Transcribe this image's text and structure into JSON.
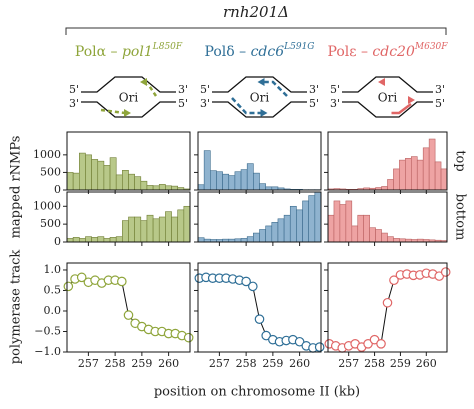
{
  "figure": {
    "title": "rnh201Δ",
    "ylabel_hist": "mapped rNMPs",
    "ylabel_track": "polymerase track",
    "xlabel": "position on chromosome II (kb)",
    "row_labels": [
      "top",
      "bottom"
    ],
    "diagram": {
      "left": [
        "5'",
        "3'"
      ],
      "right": [
        "3'",
        "5'"
      ],
      "center": "Ori"
    },
    "columns": [
      {
        "prefix": "Polα – ",
        "gene": "pol1",
        "allele": "L850F",
        "color": "#8fa53b"
      },
      {
        "prefix": "Polδ – ",
        "gene": "cdc6",
        "allele": "L591G",
        "color": "#2f6f97"
      },
      {
        "prefix": "Polε – ",
        "gene": "cdc20",
        "allele": "M630F",
        "color": "#e06666"
      }
    ]
  },
  "chart_data": [
    {
      "type": "histogram",
      "color": "#b8c889",
      "edge": "#6f7d33",
      "xlim": [
        256.2,
        260.8
      ],
      "ylim": [
        0,
        1650
      ],
      "yticks": [
        0,
        500,
        1000
      ],
      "xticks": [
        257,
        258,
        259,
        260
      ],
      "bins": [
        256.2,
        256.43,
        256.66,
        256.89,
        257.12,
        257.35,
        257.58,
        257.81,
        258.04,
        258.27,
        258.5,
        258.73,
        258.96,
        259.19,
        259.42,
        259.65,
        259.88,
        260.11,
        260.34,
        260.57,
        260.8
      ],
      "values": [
        500,
        480,
        1050,
        1000,
        870,
        820,
        700,
        920,
        430,
        560,
        450,
        380,
        250,
        130,
        120,
        160,
        120,
        110,
        70,
        30
      ]
    },
    {
      "type": "histogram",
      "color": "#b8c889",
      "edge": "#6f7d33",
      "xlim": [
        256.2,
        260.8
      ],
      "ylim": [
        0,
        1400
      ],
      "yticks": [
        0,
        500,
        1000
      ],
      "xticks": [
        257,
        258,
        259,
        260
      ],
      "bins": [
        256.2,
        256.43,
        256.66,
        256.89,
        257.12,
        257.35,
        257.58,
        257.81,
        258.04,
        258.27,
        258.5,
        258.73,
        258.96,
        259.19,
        259.42,
        259.65,
        259.88,
        260.11,
        260.34,
        260.57,
        260.8
      ],
      "values": [
        100,
        130,
        100,
        150,
        130,
        150,
        100,
        130,
        150,
        600,
        700,
        700,
        600,
        750,
        650,
        700,
        850,
        700,
        900,
        1000
      ]
    },
    {
      "type": "line",
      "color": "#8fa53b",
      "xlim": [
        256.2,
        260.8
      ],
      "ylim": [
        -1.0,
        1.17
      ],
      "yticks": [
        {
          "value": -1.0,
          "label": "−1.0"
        },
        {
          "value": -0.5,
          "label": "−0.5"
        },
        {
          "value": 0.0,
          "label": "0.0"
        },
        0.5,
        {
          "value": 1.0,
          "label": "1.0"
        }
      ],
      "xticks": [
        257,
        258,
        259,
        260
      ],
      "x": [
        256.25,
        256.5,
        256.75,
        257.0,
        257.25,
        257.5,
        257.75,
        258.0,
        258.25,
        258.5,
        258.75,
        259.0,
        259.25,
        259.5,
        259.75,
        260.0,
        260.25,
        260.5,
        260.75
      ],
      "values": [
        0.6,
        0.78,
        0.82,
        0.7,
        0.75,
        0.68,
        0.75,
        0.75,
        0.72,
        -0.1,
        -0.3,
        -0.38,
        -0.45,
        -0.5,
        -0.5,
        -0.55,
        -0.55,
        -0.6,
        -0.65
      ]
    },
    {
      "type": "histogram",
      "color": "#8fb3cf",
      "edge": "#3a6a8c",
      "xlim": [
        256.2,
        260.8
      ],
      "ylim": [
        0,
        1650
      ],
      "yticks": [
        0,
        500,
        1000
      ],
      "xticks": [
        257,
        258,
        259,
        260
      ],
      "bins": [
        256.2,
        256.43,
        256.66,
        256.89,
        257.12,
        257.35,
        257.58,
        257.81,
        258.04,
        258.27,
        258.5,
        258.73,
        258.96,
        259.19,
        259.42,
        259.65,
        259.88,
        260.11,
        260.34,
        260.57,
        260.8
      ],
      "values": [
        150,
        1120,
        550,
        520,
        450,
        410,
        520,
        580,
        750,
        480,
        180,
        90,
        90,
        60,
        30,
        20,
        20,
        10,
        10,
        10
      ]
    },
    {
      "type": "histogram",
      "color": "#8fb3cf",
      "edge": "#3a6a8c",
      "xlim": [
        256.2,
        260.8
      ],
      "ylim": [
        0,
        1400
      ],
      "yticks": [
        0,
        500,
        1000
      ],
      "xticks": [
        257,
        258,
        259,
        260
      ],
      "bins": [
        256.2,
        256.43,
        256.66,
        256.89,
        257.12,
        257.35,
        257.58,
        257.81,
        258.04,
        258.27,
        258.5,
        258.73,
        258.96,
        259.19,
        259.42,
        259.65,
        259.88,
        260.11,
        260.34,
        260.57,
        260.8
      ],
      "values": [
        120,
        80,
        70,
        70,
        80,
        80,
        90,
        100,
        150,
        250,
        350,
        450,
        550,
        650,
        750,
        1000,
        900,
        1150,
        1300,
        1400
      ]
    },
    {
      "type": "line",
      "color": "#2f6f97",
      "xlim": [
        256.2,
        260.8
      ],
      "ylim": [
        -1.0,
        1.17
      ],
      "yticks": [
        -1,
        -0.5,
        0,
        0.5,
        1
      ],
      "xticks": [
        257,
        258,
        259,
        260
      ],
      "x": [
        256.25,
        256.5,
        256.75,
        257.0,
        257.25,
        257.5,
        257.75,
        258.0,
        258.25,
        258.5,
        258.75,
        259.0,
        259.25,
        259.5,
        259.75,
        260.0,
        260.25,
        260.5,
        260.75
      ],
      "values": [
        0.8,
        0.82,
        0.8,
        0.8,
        0.8,
        0.78,
        0.75,
        0.72,
        0.6,
        -0.2,
        -0.6,
        -0.7,
        -0.75,
        -0.72,
        -0.7,
        -0.75,
        -0.85,
        -0.9,
        -0.88
      ]
    },
    {
      "type": "histogram",
      "color": "#eea3a3",
      "edge": "#b96060",
      "xlim": [
        256.2,
        260.8
      ],
      "ylim": [
        0,
        1650
      ],
      "yticks": [
        0,
        500,
        1000
      ],
      "xticks": [
        257,
        258,
        259,
        260
      ],
      "bins": [
        256.2,
        256.43,
        256.66,
        256.89,
        257.12,
        257.35,
        257.58,
        257.81,
        258.04,
        258.27,
        258.5,
        258.73,
        258.96,
        259.19,
        259.42,
        259.65,
        259.88,
        260.11,
        260.34,
        260.57,
        260.8
      ],
      "values": [
        30,
        40,
        30,
        20,
        20,
        40,
        60,
        50,
        70,
        100,
        300,
        600,
        850,
        900,
        950,
        850,
        1200,
        1450,
        800,
        600
      ]
    },
    {
      "type": "histogram",
      "color": "#eea3a3",
      "edge": "#b96060",
      "xlim": [
        256.2,
        260.8
      ],
      "ylim": [
        0,
        1400
      ],
      "yticks": [
        0,
        500,
        1000
      ],
      "xticks": [
        257,
        258,
        259,
        260
      ],
      "bins": [
        256.2,
        256.43,
        256.66,
        256.89,
        257.12,
        257.35,
        257.58,
        257.81,
        258.04,
        258.27,
        258.5,
        258.73,
        258.96,
        259.19,
        259.42,
        259.65,
        259.88,
        260.11,
        260.34,
        260.57,
        260.8
      ],
      "values": [
        750,
        1150,
        1050,
        1150,
        450,
        750,
        750,
        400,
        350,
        250,
        150,
        100,
        90,
        80,
        70,
        80,
        70,
        60,
        50,
        40
      ]
    },
    {
      "type": "line",
      "color": "#e06666",
      "xlim": [
        256.2,
        260.8
      ],
      "ylim": [
        -1.0,
        1.17
      ],
      "yticks": [
        -1,
        -0.5,
        0,
        0.5,
        1
      ],
      "xticks": [
        257,
        258,
        259,
        260
      ],
      "x": [
        256.25,
        256.5,
        256.75,
        257.0,
        257.25,
        257.5,
        257.75,
        258.0,
        258.25,
        258.5,
        258.75,
        259.0,
        259.25,
        259.5,
        259.75,
        260.0,
        260.25,
        260.5,
        260.75
      ],
      "values": [
        -0.8,
        -0.85,
        -0.9,
        -0.85,
        -0.8,
        -0.88,
        -0.8,
        -0.7,
        -0.8,
        0.2,
        0.75,
        0.88,
        0.9,
        0.87,
        0.88,
        0.92,
        0.9,
        0.85,
        0.95
      ]
    }
  ]
}
